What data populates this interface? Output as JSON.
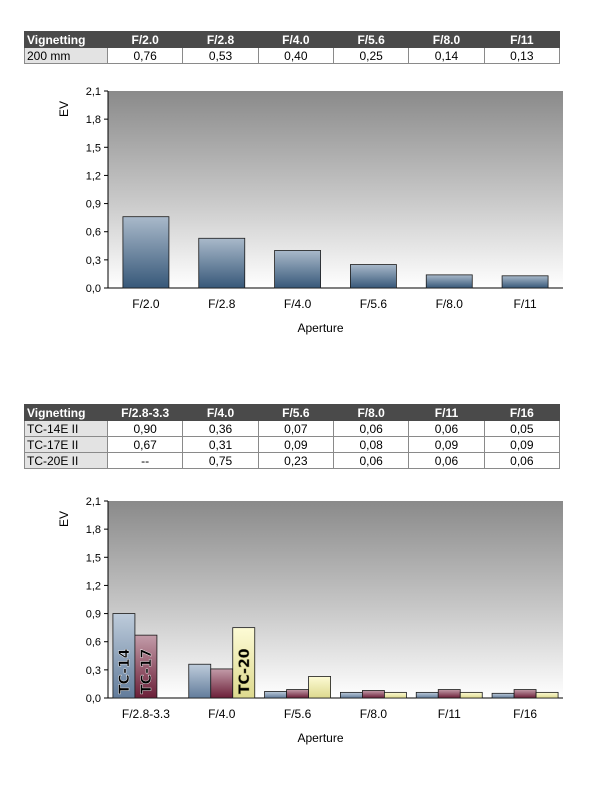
{
  "table1": {
    "headers": [
      "Vignetting",
      "F/2.0",
      "F/2.8",
      "F/4.0",
      "F/5.6",
      "F/8.0",
      "F/11"
    ],
    "rows": [
      {
        "label": "200 mm",
        "values": [
          "0,76",
          "0,53",
          "0,40",
          "0,25",
          "0,14",
          "0,13"
        ]
      }
    ]
  },
  "table2": {
    "headers": [
      "Vignetting",
      "F/2.8-3.3",
      "F/4.0",
      "F/5.6",
      "F/8.0",
      "F/11",
      "F/16"
    ],
    "rows": [
      {
        "label": "TC-14E II",
        "values": [
          "0,90",
          "0,36",
          "0,07",
          "0,06",
          "0,06",
          "0,05"
        ]
      },
      {
        "label": "TC-17E II",
        "values": [
          "0,67",
          "0,31",
          "0,09",
          "0,08",
          "0,09",
          "0,09"
        ]
      },
      {
        "label": "TC-20E II",
        "values": [
          "--",
          "0,75",
          "0,23",
          "0,06",
          "0,06",
          "0,06"
        ]
      }
    ]
  },
  "chart_data": [
    {
      "type": "bar",
      "title": "",
      "xlabel": "Aperture",
      "ylabel": "EV",
      "ylim": [
        0,
        2.1
      ],
      "yticks": [
        "0,0",
        "0,3",
        "0,6",
        "0,9",
        "1,2",
        "1,5",
        "1,8",
        "2,1"
      ],
      "grid": false,
      "categories": [
        "F/2.0",
        "F/2.8",
        "F/4.0",
        "F/5.6",
        "F/8.0",
        "F/11"
      ],
      "series": [
        {
          "values": [
            0.76,
            0.53,
            0.4,
            0.25,
            0.14,
            0.13
          ],
          "color": "#3f6489"
        }
      ]
    },
    {
      "type": "bar",
      "title": "",
      "xlabel": "Aperture",
      "ylabel": "EV",
      "ylim": [
        0,
        2.1
      ],
      "yticks": [
        "0,0",
        "0,3",
        "0,6",
        "0,9",
        "1,2",
        "1,5",
        "1,8",
        "2,1"
      ],
      "grid": false,
      "categories": [
        "F/2.8-3.3",
        "F/4.0",
        "F/5.6",
        "F/8.0",
        "F/11",
        "F/16"
      ],
      "series": [
        {
          "name": "TC-14",
          "values": [
            0.9,
            0.36,
            0.07,
            0.06,
            0.06,
            0.05
          ],
          "color": "#6f8db0"
        },
        {
          "name": "TC-17",
          "values": [
            0.67,
            0.31,
            0.09,
            0.08,
            0.09,
            0.09
          ],
          "color": "#7a2340"
        },
        {
          "name": "TC-20",
          "values": [
            null,
            0.75,
            0.23,
            0.06,
            0.06,
            0.06
          ],
          "color": "#fbf7a1"
        }
      ]
    }
  ]
}
